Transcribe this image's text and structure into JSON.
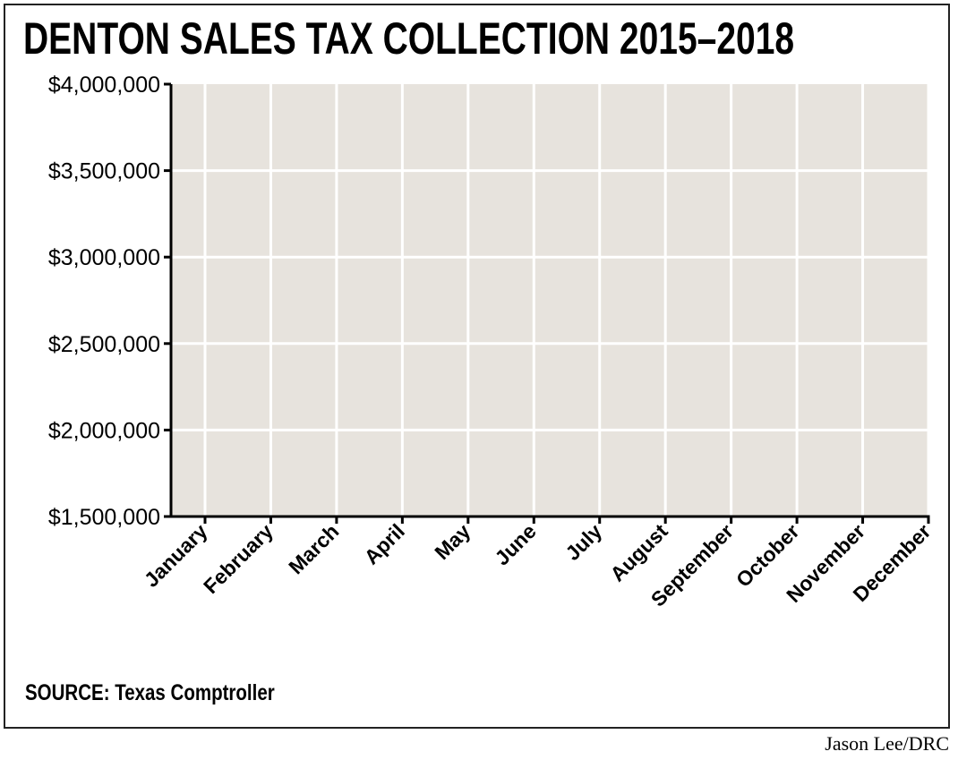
{
  "chart_data": {
    "type": "line",
    "title": "DENTON SALES TAX COLLECTION 2015–2018",
    "categories": [
      "January",
      "February",
      "March",
      "April",
      "May",
      "June",
      "July",
      "August",
      "September",
      "October",
      "November",
      "December"
    ],
    "y_ticks": [
      "$1,500,000",
      "$2,000,000",
      "$2,500,000",
      "$3,000,000",
      "$3,500,000",
      "$4,000,000"
    ],
    "y_tick_values": [
      1500000,
      2000000,
      2500000,
      3000000,
      3500000,
      4000000
    ],
    "ylim": [
      1500000,
      4000000
    ],
    "xlabel": "",
    "ylabel": "",
    "grid": true,
    "series": [],
    "plot_background": "#e7e3dd",
    "grid_color": "#ffffff"
  },
  "source": "SOURCE: Texas Comptroller",
  "credit": "Jason Lee/DRC"
}
